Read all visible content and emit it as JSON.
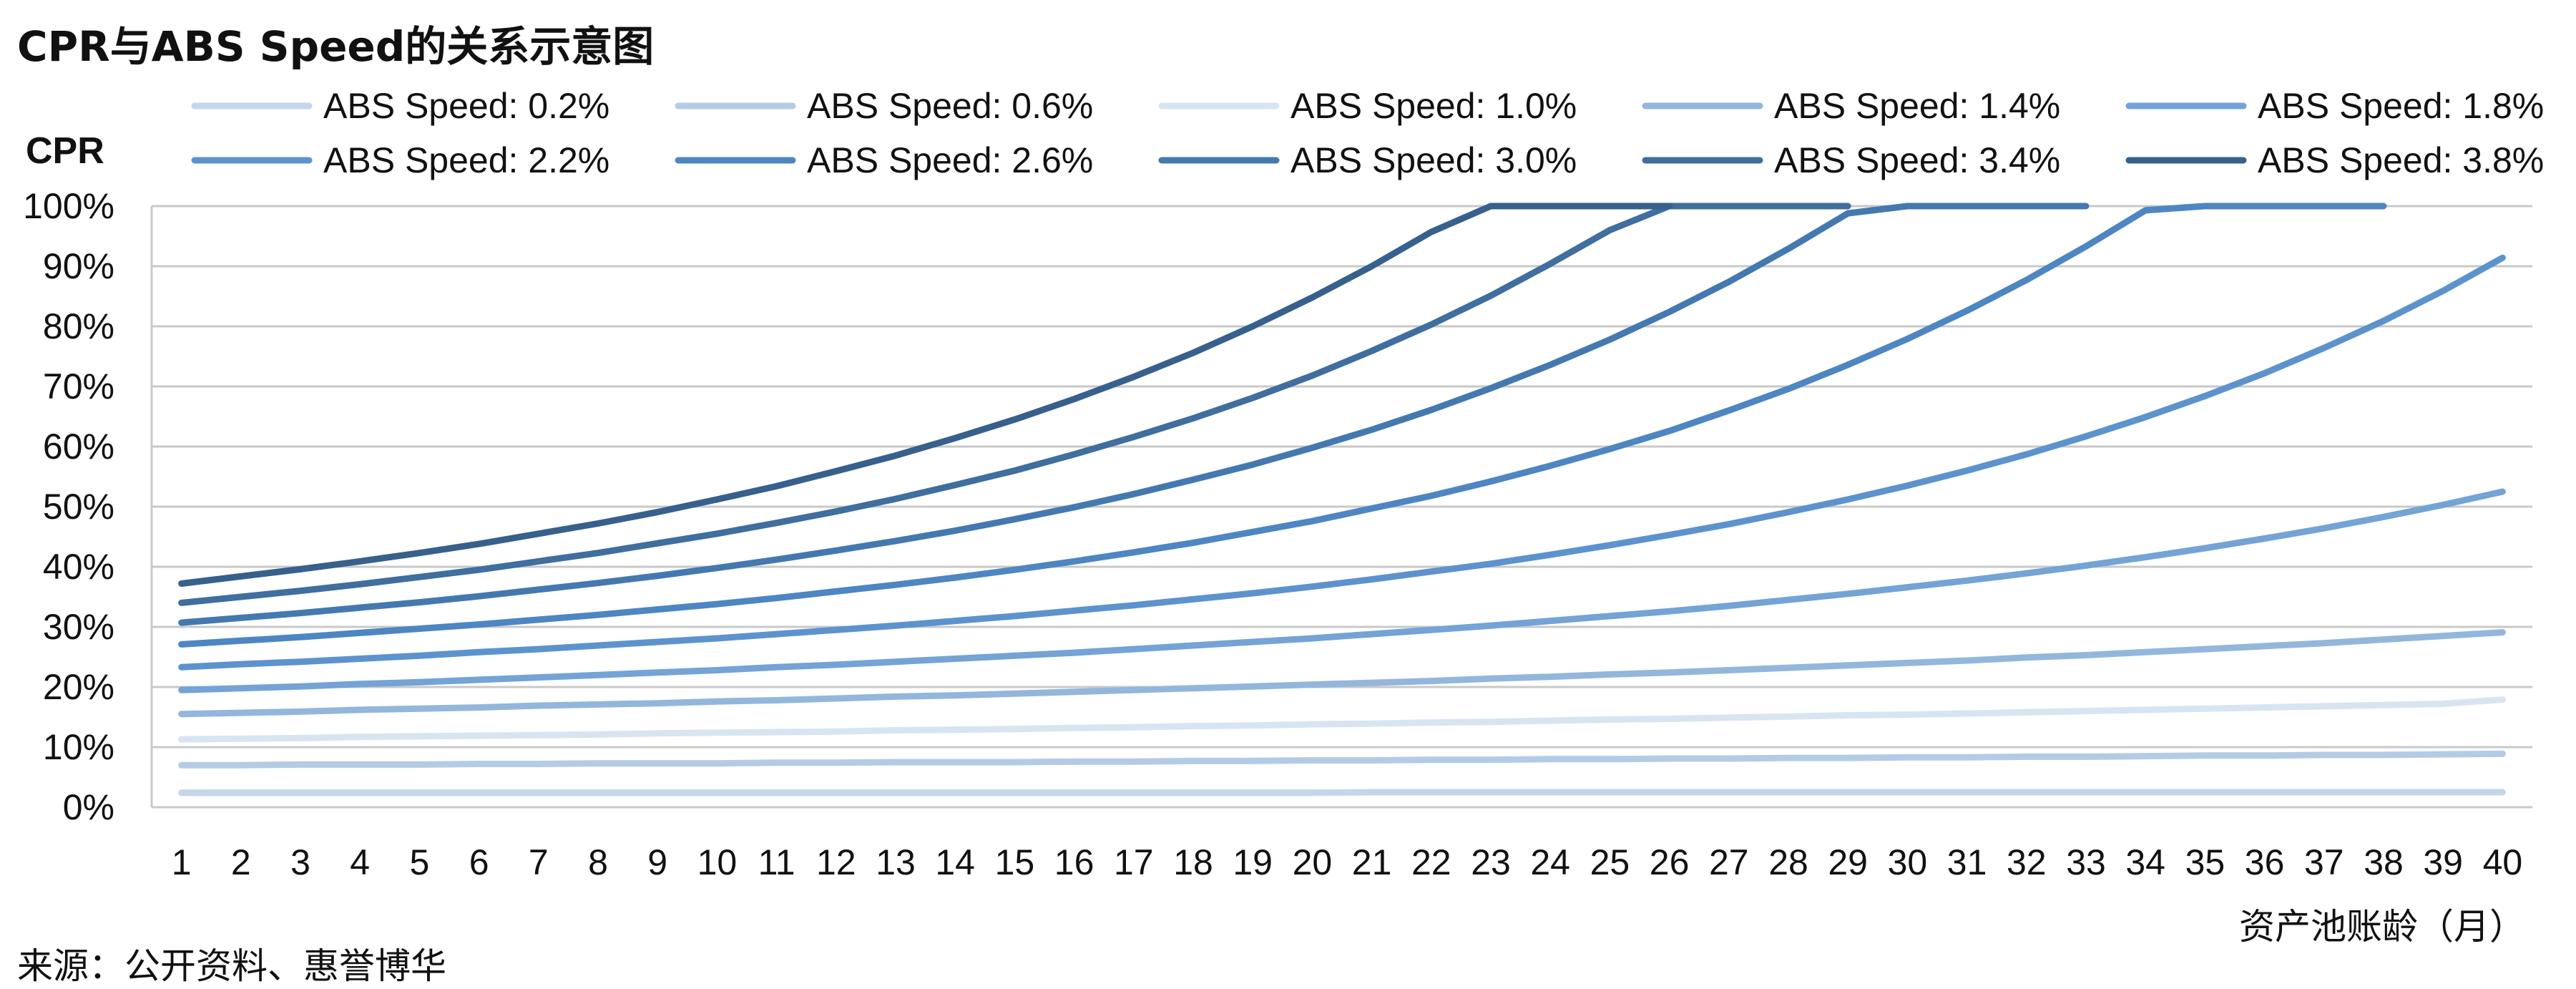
{
  "title": "CPR与ABS Speed的关系示意图",
  "source": "来源：公开资料、惠誉博华",
  "chart_data": {
    "type": "line",
    "ylabel": "CPR",
    "xlabel": "资产池账龄（月）",
    "ylim": [
      0,
      100
    ],
    "yticks": [
      "0%",
      "10%",
      "20%",
      "30%",
      "40%",
      "50%",
      "60%",
      "70%",
      "80%",
      "90%",
      "100%"
    ],
    "x": [
      1,
      2,
      3,
      4,
      5,
      6,
      7,
      8,
      9,
      10,
      11,
      12,
      13,
      14,
      15,
      16,
      17,
      18,
      19,
      20,
      21,
      22,
      23,
      24,
      25,
      26,
      27,
      28,
      29,
      30,
      31,
      32,
      33,
      34,
      35,
      36,
      37,
      38,
      39,
      40
    ],
    "grid": true,
    "legend_position": "top",
    "series": [
      {
        "name": "ABS Speed: 0.2%",
        "color": "#c5d6ea",
        "values": [
          2.4,
          2.4,
          2.4,
          2.4,
          2.4,
          2.4,
          2.4,
          2.4,
          2.4,
          2.4,
          2.4,
          2.4,
          2.4,
          2.4,
          2.4,
          2.4,
          2.4,
          2.4,
          2.4,
          2.4,
          2.5,
          2.5,
          2.5,
          2.5,
          2.5,
          2.5,
          2.5,
          2.5,
          2.5,
          2.5,
          2.5,
          2.5,
          2.5,
          2.5,
          2.5,
          2.5,
          2.5,
          2.5,
          2.5,
          2.5
        ]
      },
      {
        "name": "ABS Speed: 0.6%",
        "color": "#b4cbe6",
        "values": [
          7.0,
          7.0,
          7.1,
          7.1,
          7.1,
          7.2,
          7.2,
          7.3,
          7.3,
          7.3,
          7.4,
          7.4,
          7.5,
          7.5,
          7.5,
          7.6,
          7.6,
          7.7,
          7.7,
          7.8,
          7.8,
          7.9,
          7.9,
          8.0,
          8.0,
          8.1,
          8.1,
          8.2,
          8.2,
          8.3,
          8.3,
          8.4,
          8.4,
          8.5,
          8.6,
          8.6,
          8.7,
          8.7,
          8.8,
          8.9
        ]
      },
      {
        "name": "ABS Speed: 1.0%",
        "color": "#d8e4f2",
        "values": [
          11.3,
          11.4,
          11.5,
          11.7,
          11.8,
          11.9,
          12.0,
          12.1,
          12.3,
          12.4,
          12.5,
          12.6,
          12.8,
          12.9,
          13.0,
          13.2,
          13.3,
          13.5,
          13.6,
          13.8,
          13.9,
          14.1,
          14.2,
          14.4,
          14.6,
          14.7,
          14.9,
          15.1,
          15.3,
          15.4,
          15.6,
          15.8,
          16.0,
          16.2,
          16.4,
          16.6,
          16.8,
          17.0,
          17.2,
          17.9
        ]
      },
      {
        "name": "ABS Speed: 1.4%",
        "color": "#93b6dc",
        "values": [
          15.5,
          15.7,
          15.9,
          16.2,
          16.4,
          16.6,
          16.9,
          17.1,
          17.3,
          17.6,
          17.8,
          18.1,
          18.4,
          18.6,
          18.9,
          19.2,
          19.5,
          19.8,
          20.1,
          20.4,
          20.7,
          21.0,
          21.4,
          21.7,
          22.1,
          22.4,
          22.8,
          23.2,
          23.6,
          24.0,
          24.4,
          24.9,
          25.3,
          25.8,
          26.3,
          26.8,
          27.3,
          27.9,
          28.5,
          29.1
        ]
      },
      {
        "name": "ABS Speed: 1.8%",
        "color": "#74a3d6",
        "values": [
          19.5,
          19.8,
          20.1,
          20.5,
          20.8,
          21.2,
          21.6,
          22.0,
          22.4,
          22.8,
          23.3,
          23.7,
          24.2,
          24.7,
          25.2,
          25.7,
          26.3,
          26.9,
          27.5,
          28.1,
          28.8,
          29.5,
          30.2,
          31.0,
          31.8,
          32.6,
          33.5,
          34.5,
          35.5,
          36.6,
          37.7,
          38.9,
          40.2,
          41.6,
          43.1,
          44.7,
          46.4,
          48.3,
          50.3,
          52.5
        ]
      },
      {
        "name": "ABS Speed: 2.2%",
        "color": "#5d93cd",
        "values": [
          23.3,
          23.8,
          24.2,
          24.7,
          25.2,
          25.8,
          26.3,
          26.9,
          27.5,
          28.1,
          28.8,
          29.5,
          30.2,
          31.0,
          31.8,
          32.7,
          33.6,
          34.6,
          35.6,
          36.7,
          37.9,
          39.2,
          40.5,
          42.0,
          43.6,
          45.3,
          47.1,
          49.1,
          51.2,
          53.5,
          56.0,
          58.7,
          61.7,
          64.9,
          68.4,
          72.2,
          76.4,
          80.9,
          85.9,
          91.4
        ]
      },
      {
        "name": "ABS Speed: 2.6%",
        "color": "#4d86c2",
        "values": [
          27.1,
          27.7,
          28.3,
          29.0,
          29.7,
          30.4,
          31.2,
          32.0,
          32.9,
          33.8,
          34.8,
          35.9,
          37.0,
          38.2,
          39.5,
          40.9,
          42.4,
          44.0,
          45.8,
          47.6,
          49.7,
          51.8,
          54.2,
          56.8,
          59.6,
          62.6,
          66.0,
          69.6,
          73.6,
          77.9,
          82.6,
          87.7,
          93.3,
          99.3,
          100,
          100,
          100,
          100,
          null,
          null
        ]
      },
      {
        "name": "ABS Speed: 3.0%",
        "color": "#4479b0",
        "values": [
          30.7,
          31.5,
          32.3,
          33.2,
          34.1,
          35.1,
          36.2,
          37.3,
          38.5,
          39.8,
          41.2,
          42.7,
          44.3,
          46.0,
          47.9,
          49.9,
          52.1,
          54.5,
          57.0,
          59.8,
          62.8,
          66.1,
          69.7,
          73.6,
          77.8,
          82.4,
          87.4,
          92.9,
          98.8,
          100,
          100,
          100,
          100,
          null,
          null,
          null,
          null,
          null,
          null,
          null
        ]
      },
      {
        "name": "ABS Speed: 3.4%",
        "color": "#3f6e9f",
        "values": [
          34.0,
          35.0,
          36.0,
          37.1,
          38.3,
          39.5,
          40.9,
          42.3,
          43.9,
          45.5,
          47.3,
          49.2,
          51.3,
          53.6,
          56.0,
          58.7,
          61.6,
          64.7,
          68.1,
          71.8,
          75.9,
          80.3,
          85.1,
          90.4,
          96.0,
          100,
          100,
          100,
          100,
          null,
          null,
          null,
          null,
          null,
          null,
          null,
          null,
          null,
          null,
          null
        ]
      },
      {
        "name": "ABS Speed: 3.8%",
        "color": "#37608c",
        "values": [
          37.2,
          38.4,
          39.6,
          40.9,
          42.3,
          43.8,
          45.5,
          47.2,
          49.1,
          51.2,
          53.4,
          55.9,
          58.5,
          61.4,
          64.5,
          67.9,
          71.6,
          75.6,
          80.0,
          84.8,
          90.0,
          95.7,
          100,
          100,
          100,
          100,
          null,
          null,
          null,
          null,
          null,
          null,
          null,
          null,
          null,
          null,
          null,
          null,
          null,
          null
        ]
      }
    ]
  }
}
